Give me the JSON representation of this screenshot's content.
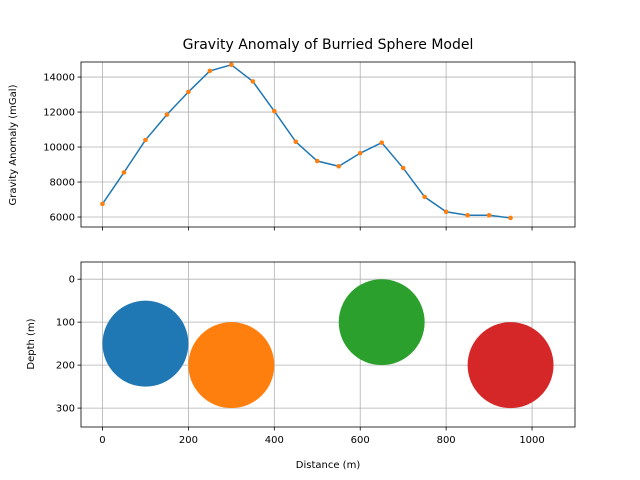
{
  "chart_data": [
    {
      "type": "line",
      "title": "Gravity Anomaly of Burried Sphere Model",
      "y_label": "Gravity Anomaly (mGal)",
      "x": [
        0,
        50,
        100,
        150,
        200,
        250,
        300,
        350,
        400,
        450,
        500,
        550,
        600,
        650,
        700,
        750,
        800,
        850,
        900,
        950
      ],
      "values": [
        6750,
        8550,
        10400,
        11850,
        13150,
        14350,
        14700,
        13750,
        12050,
        10300,
        9200,
        8900,
        9650,
        10250,
        8800,
        7150,
        6300,
        6100,
        6100,
        5950
      ],
      "color": "#1f77b4",
      "marker_color": "#ff7f0e",
      "xlim": [
        -50,
        1100
      ],
      "xticks": [
        0,
        200,
        400,
        600,
        800,
        1000
      ],
      "ylim": [
        5430,
        14860
      ],
      "yticks": [
        6000,
        8000,
        10000,
        12000,
        14000
      ],
      "grid": true
    },
    {
      "type": "circles",
      "x_label": "Distance (m)",
      "y_label": "Depth (m)",
      "x": [
        100,
        300,
        650,
        950
      ],
      "values": [
        150,
        200,
        100,
        200
      ],
      "radius": [
        100,
        100,
        100,
        100
      ],
      "colors": [
        "#1f77b4",
        "#ff7f0e",
        "#2ca02c",
        "#d62728"
      ],
      "xlim": [
        -50,
        1100
      ],
      "xticks": [
        0,
        200,
        400,
        600,
        800,
        1000
      ],
      "ylim": [
        344,
        -40
      ],
      "yticks": [
        0,
        100,
        200,
        300
      ],
      "grid": true
    }
  ]
}
